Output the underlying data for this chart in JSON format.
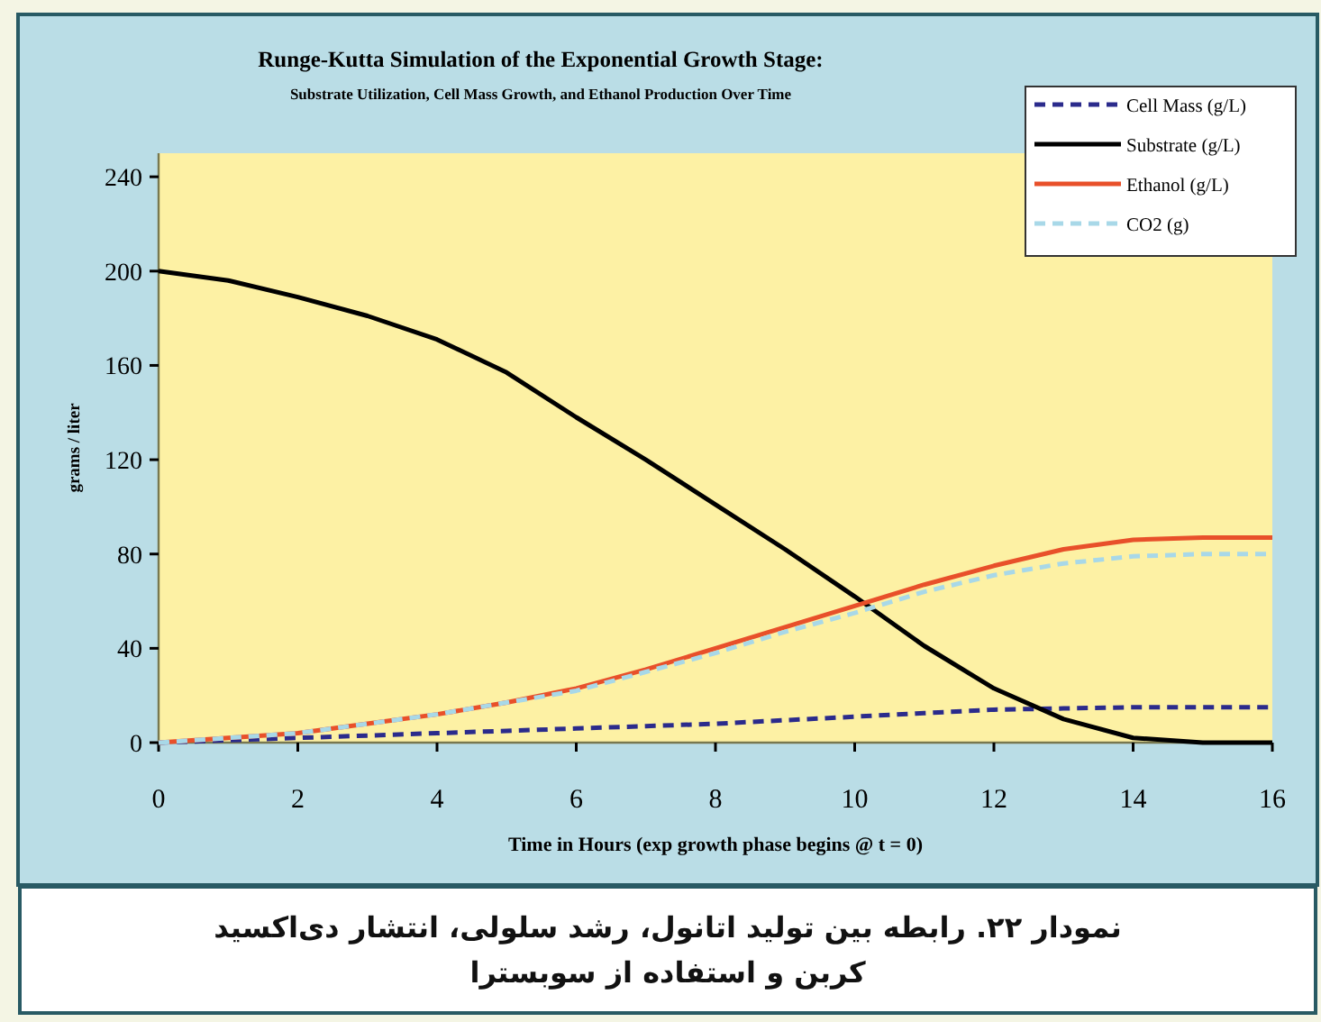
{
  "chart_data": {
    "type": "line",
    "title": "Runge-Kutta Simulation of the Exponential Growth Stage:",
    "subtitle": "Substrate Utilization, Cell Mass Growth, and Ethanol Production Over Time",
    "xlabel": "Time in Hours (exp growth phase begins @ t = 0)",
    "ylabel": "grams / liter",
    "x": [
      0,
      1,
      2,
      3,
      4,
      5,
      6,
      7,
      8,
      9,
      10,
      11,
      12,
      13,
      14,
      15,
      16
    ],
    "series": [
      {
        "name": "Cell Mass (g/L)",
        "color": "#2b2b8c",
        "line_style": "dashed",
        "values": [
          0,
          1,
          2,
          3,
          4,
          5,
          6,
          7,
          8,
          9.5,
          11,
          12.5,
          14,
          14.5,
          15,
          15,
          15
        ]
      },
      {
        "name": "Substrate (g/L)",
        "color": "#000000",
        "line_style": "solid",
        "values": [
          200,
          196,
          189,
          181,
          171,
          157,
          138,
          120,
          101,
          82,
          62,
          41,
          23,
          10,
          2,
          0,
          0
        ]
      },
      {
        "name": "Ethanol (g/L)",
        "color": "#e8502a",
        "line_style": "solid",
        "values": [
          0,
          2,
          4,
          8,
          12,
          17,
          23,
          31,
          40,
          49,
          58,
          67,
          75,
          82,
          86,
          87,
          87
        ]
      },
      {
        "name": "CO2 (g)",
        "color": "#a8d8e8",
        "line_style": "dashed",
        "values": [
          0,
          2,
          4,
          8,
          12,
          17,
          22,
          30,
          38,
          47,
          55,
          64,
          71,
          76,
          79,
          80,
          80
        ]
      }
    ],
    "xlim": [
      0,
      16
    ],
    "ylim": [
      0,
      250
    ],
    "xticks": [
      0,
      2,
      4,
      6,
      8,
      10,
      12,
      14,
      16
    ],
    "yticks": [
      0,
      40,
      80,
      120,
      160,
      200,
      240
    ],
    "grid": false,
    "legend": "top right",
    "annotations": [
      "نمودار ۲۲. رابطه بین تولید اتانول، رشد سلولی، انتشار دی‌اکسید کربن و استفاده از سوبسترا"
    ]
  }
}
